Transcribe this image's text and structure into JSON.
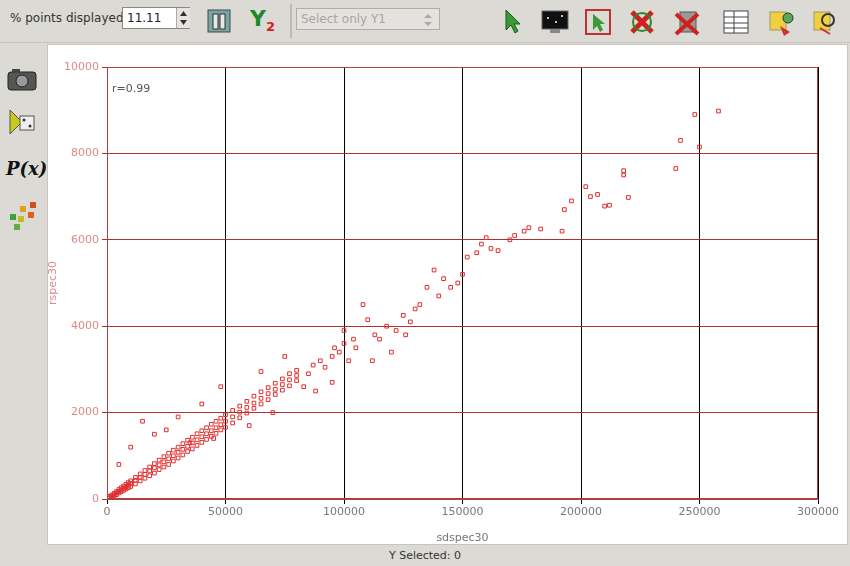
{
  "toolbar": {
    "points_label": "% points displayed",
    "points_value": "11.11",
    "y2_button": "Y2",
    "selector": "Select only Y1"
  },
  "sidebar": {
    "function_button": "P(x)"
  },
  "status_bar": "Y Selected: 0",
  "chart_data": {
    "type": "scatter",
    "x_label": "sdspec30",
    "y_label": "rspec30",
    "annotations": [
      "r=0.99"
    ],
    "color": "#e03030",
    "marker": "square",
    "grid": true,
    "xlim": [
      0,
      300000
    ],
    "xticks": [
      0,
      50000,
      100000,
      150000,
      200000,
      250000,
      300000
    ],
    "ylim": [
      0,
      10000
    ],
    "yticks": [
      0,
      2000,
      4000,
      6000,
      8000,
      10000
    ],
    "x": [
      1000,
      1000,
      1000,
      2000,
      2000,
      2000,
      3000,
      3000,
      3000,
      4000,
      4000,
      4000,
      5000,
      5000,
      5000,
      6000,
      6000,
      6000,
      7000,
      7000,
      7000,
      8000,
      8000,
      8000,
      9000,
      9000,
      9000,
      10000,
      10000,
      10000,
      12000,
      12000,
      12000,
      14000,
      14000,
      14000,
      16000,
      16000,
      16000,
      18000,
      18000,
      18000,
      20000,
      20000,
      20000,
      22000,
      22000,
      22000,
      24000,
      24000,
      24000,
      26000,
      26000,
      26000,
      28000,
      28000,
      28000,
      30000,
      30000,
      30000,
      32000,
      32000,
      32000,
      34000,
      34000,
      34000,
      36000,
      36000,
      36000,
      38000,
      38000,
      38000,
      40000,
      40000,
      40000,
      42000,
      42000,
      42000,
      44000,
      44000,
      44000,
      46000,
      46000,
      46000,
      48000,
      48000,
      48000,
      50000,
      50000,
      50000,
      53000,
      53000,
      53000,
      56000,
      56000,
      56000,
      59000,
      59000,
      59000,
      62000,
      62000,
      62000,
      65000,
      65000,
      65000,
      68000,
      68000,
      68000,
      71000,
      71000,
      71000,
      74000,
      74000,
      74000,
      77000,
      77000,
      77000,
      80000,
      80000,
      80000,
      258000,
      248000,
      250000,
      242000,
      240000,
      218000,
      218000,
      220000,
      212000,
      210000,
      207000,
      202000,
      204000,
      196000,
      193000,
      192000,
      183000,
      178000,
      176000,
      170000,
      172000,
      160000,
      162000,
      158000,
      165000,
      150000,
      148000,
      145000,
      152000,
      156000,
      138000,
      140000,
      135000,
      130000,
      125000,
      122000,
      128000,
      115000,
      110000,
      113000,
      105000,
      100000,
      95000,
      90000,
      92000,
      98000,
      85000,
      87000,
      83000,
      20000,
      25000,
      40000,
      48000,
      65000,
      75000,
      100000,
      108000,
      112000,
      120000,
      102000,
      10000,
      5000,
      15000,
      30000,
      35000,
      45000,
      60000,
      70000,
      88000,
      95000,
      132000,
      142000,
      118000,
      126000,
      104000,
      96000
    ],
    "values": [
      30,
      60,
      20,
      70,
      90,
      40,
      100,
      130,
      70,
      140,
      170,
      100,
      180,
      220,
      140,
      210,
      260,
      170,
      250,
      300,
      200,
      280,
      340,
      230,
      320,
      380,
      260,
      360,
      420,
      290,
      430,
      500,
      350,
      500,
      580,
      420,
      570,
      660,
      480,
      650,
      740,
      540,
      720,
      820,
      600,
      790,
      900,
      680,
      860,
      980,
      740,
      930,
      1060,
      800,
      1000,
      1130,
      880,
      1080,
      1200,
      950,
      1150,
      1280,
      1020,
      1220,
      1360,
      1100,
      1300,
      1430,
      1160,
      1370,
      1510,
      1240,
      1440,
      1580,
      1310,
      1510,
      1650,
      1380,
      1580,
      1730,
      1450,
      1650,
      1800,
      1520,
      1720,
      1870,
      1600,
      1800,
      1950,
      1660,
      1900,
      2050,
      1760,
      2010,
      2150,
      1880,
      2120,
      2260,
      1990,
      2220,
      2380,
      2100,
      2330,
      2480,
      2200,
      2440,
      2580,
      2300,
      2540,
      2680,
      2420,
      2650,
      2780,
      2520,
      2760,
      2900,
      2620,
      2860,
      2980,
      2740,
      8980,
      8900,
      8150,
      8300,
      7650,
      7600,
      7500,
      6980,
      6800,
      6780,
      7050,
      7230,
      7000,
      6900,
      6700,
      6200,
      6250,
      6280,
      6200,
      6000,
      6100,
      6050,
      5800,
      5900,
      5750,
      5200,
      5000,
      4900,
      5600,
      5700,
      5300,
      4700,
      4900,
      4400,
      4250,
      3900,
      4100,
      3700,
      4150,
      3800,
      3500,
      3600,
      3300,
      3200,
      3050,
      3400,
      2900,
      3100,
      2600,
      1500,
      1600,
      2200,
      2600,
      2950,
      3300,
      3900,
      4500,
      3200,
      3400,
      3200,
      1200,
      800,
      1800,
      1900,
      1300,
      1400,
      1700,
      2000,
      2500,
      2700,
      4500,
      5100,
      4000,
      3800,
      3700,
      3500
    ]
  }
}
